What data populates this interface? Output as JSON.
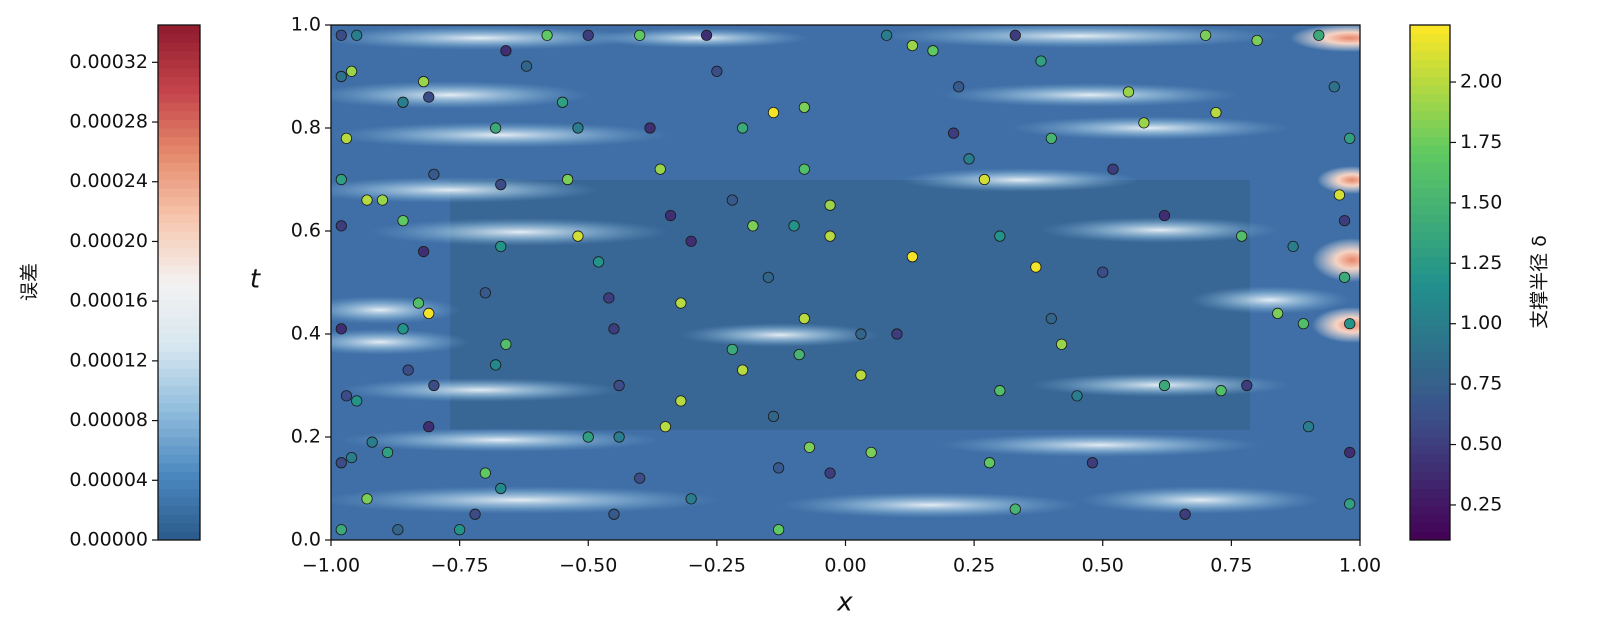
{
  "chart_data": {
    "type": "scatter",
    "xlabel": "x",
    "ylabel": "t",
    "xlim": [
      -1,
      1
    ],
    "xticks": [
      {
        "value": -1,
        "label": "−1.00"
      },
      {
        "value": -0.75,
        "label": "−0.75"
      },
      {
        "value": -0.5,
        "label": "−0.50"
      },
      {
        "value": -0.25,
        "label": "−0.25"
      },
      {
        "value": 0,
        "label": "0.00"
      },
      {
        "value": 0.25,
        "label": "0.25"
      },
      {
        "value": 0.5,
        "label": "0.50"
      },
      {
        "value": 0.75,
        "label": "0.75"
      },
      {
        "value": 1,
        "label": "1.00"
      }
    ],
    "ylim": [
      0,
      1
    ],
    "yticks": [
      {
        "value": 0,
        "label": "0.0"
      },
      {
        "value": 0.2,
        "label": "0.2"
      },
      {
        "value": 0.4,
        "label": "0.4"
      },
      {
        "value": 0.6,
        "label": "0.6"
      },
      {
        "value": 0.8,
        "label": "0.8"
      },
      {
        "value": 1,
        "label": "1.0"
      }
    ],
    "x": [
      -0.98,
      -0.95,
      -0.98,
      -0.96,
      -0.97,
      -0.98,
      -0.98,
      -0.93,
      -0.9,
      -0.86,
      -0.86,
      -0.82,
      -0.81,
      -0.8,
      -0.82,
      -0.83,
      -0.81,
      -0.86,
      -0.85,
      -0.8,
      -0.81,
      -0.98,
      -0.97,
      -0.95,
      -0.98,
      -0.96,
      -0.92,
      -0.89,
      -0.93,
      -0.98,
      -0.87,
      -0.75,
      -0.7,
      -0.67,
      -0.72,
      -0.68,
      -0.66,
      -0.7,
      -0.67,
      -0.67,
      -0.68,
      -0.66,
      -0.62,
      -0.58,
      -0.5,
      -0.55,
      -0.52,
      -0.54,
      -0.52,
      -0.48,
      -0.46,
      -0.45,
      -0.44,
      -0.5,
      -0.44,
      -0.4,
      -0.45,
      -0.4,
      -0.38,
      -0.36,
      -0.34,
      -0.3,
      -0.32,
      -0.32,
      -0.3,
      -0.35,
      -0.27,
      -0.25,
      -0.2,
      -0.22,
      -0.18,
      -0.15,
      -0.22,
      -0.2,
      -0.14,
      -0.13,
      -0.13,
      -0.14,
      -0.08,
      -0.08,
      -0.1,
      -0.08,
      -0.09,
      -0.07,
      -0.03,
      -0.03,
      -0.03,
      0.03,
      0.03,
      0.05,
      0.08,
      0.1,
      0.13,
      0.13,
      0.17,
      0.22,
      0.21,
      0.24,
      0.27,
      0.3,
      0.3,
      0.28,
      0.33,
      0.33,
      0.38,
      0.4,
      0.37,
      0.4,
      0.42,
      0.45,
      0.48,
      0.5,
      0.52,
      0.55,
      0.58,
      0.62,
      0.62,
      0.66,
      0.7,
      0.72,
      0.73,
      0.77,
      0.78,
      0.8,
      0.84,
      0.87,
      0.89,
      0.9,
      0.92,
      0.95,
      0.96,
      0.97,
      0.98,
      0.98,
      0.98,
      0.98,
      0.97
    ],
    "values": [
      0.98,
      0.98,
      0.9,
      0.91,
      0.78,
      0.7,
      0.61,
      0.66,
      0.66,
      0.62,
      0.85,
      0.89,
      0.86,
      0.71,
      0.56,
      0.46,
      0.44,
      0.41,
      0.33,
      0.3,
      0.22,
      0.41,
      0.28,
      0.27,
      0.15,
      0.16,
      0.19,
      0.17,
      0.08,
      0.02,
      0.02,
      0.02,
      0.13,
      0.1,
      0.05,
      0.34,
      0.38,
      0.48,
      0.57,
      0.69,
      0.8,
      0.95,
      0.92,
      0.98,
      0.98,
      0.85,
      0.8,
      0.7,
      0.59,
      0.54,
      0.47,
      0.41,
      0.3,
      0.2,
      0.2,
      0.12,
      0.05,
      0.98,
      0.8,
      0.72,
      0.63,
      0.58,
      0.46,
      0.27,
      0.08,
      0.22,
      0.98,
      0.91,
      0.8,
      0.66,
      0.61,
      0.51,
      0.37,
      0.33,
      0.24,
      0.14,
      0.02,
      0.83,
      0.84,
      0.72,
      0.61,
      0.43,
      0.36,
      0.18,
      0.13,
      0.65,
      0.59,
      0.32,
      0.4,
      0.17,
      0.98,
      0.4,
      0.55,
      0.96,
      0.95,
      0.88,
      0.79,
      0.74,
      0.7,
      0.59,
      0.29,
      0.15,
      0.06,
      0.98,
      0.93,
      0.78,
      0.53,
      0.43,
      0.38,
      0.28,
      0.15,
      0.52,
      0.72,
      0.87,
      0.81,
      0.63,
      0.3,
      0.05,
      0.98,
      0.83,
      0.29,
      0.59,
      0.3,
      0.97,
      0.44,
      0.57,
      0.42,
      0.22,
      0.98,
      0.88,
      0.67,
      0.51,
      0.42,
      0.17,
      0.07,
      0.78,
      0.62
    ],
    "color_values": [
      0.6,
      1.0,
      0.9,
      1.9,
      2.0,
      1.3,
      0.5,
      2.0,
      1.9,
      1.7,
      1.0,
      1.9,
      0.6,
      0.7,
      0.4,
      1.6,
      2.2,
      1.2,
      0.6,
      0.6,
      0.4,
      0.4,
      0.6,
      1.2,
      0.6,
      1.0,
      1.0,
      1.3,
      1.8,
      1.4,
      0.8,
      1.2,
      1.7,
      1.1,
      0.6,
      1.1,
      1.6,
      0.7,
      1.2,
      0.6,
      1.4,
      0.4,
      0.8,
      1.7,
      0.5,
      1.3,
      1.0,
      1.8,
      2.1,
      1.2,
      0.5,
      0.5,
      0.6,
      1.3,
      1.0,
      0.6,
      0.7,
      1.7,
      0.4,
      1.9,
      0.4,
      0.4,
      2.0,
      2.0,
      1.0,
      2.0,
      0.4,
      0.6,
      1.4,
      0.7,
      1.8,
      0.8,
      1.4,
      2.0,
      0.8,
      0.7,
      1.7,
      2.2,
      1.8,
      1.6,
      1.2,
      2.0,
      1.5,
      1.8,
      0.5,
      1.9,
      2.0,
      2.0,
      0.8,
      1.8,
      1.0,
      0.5,
      2.2,
      1.9,
      1.7,
      0.7,
      0.5,
      1.0,
      2.1,
      1.2,
      1.6,
      1.7,
      1.5,
      0.5,
      1.3,
      1.5,
      2.2,
      0.8,
      1.9,
      1.0,
      0.5,
      0.6,
      0.5,
      1.9,
      1.9,
      0.4,
      1.4,
      0.5,
      1.8,
      2.0,
      1.6,
      1.6,
      0.5,
      1.8,
      1.8,
      1.0,
      1.6,
      1.0,
      1.4,
      0.9,
      2.1,
      1.4,
      1.2,
      0.4,
      1.3,
      1.3,
      0.5
    ],
    "colorbar": {
      "label": "支撑半径 δ",
      "colormap": "viridis",
      "lim": [
        0.105,
        2.236
      ],
      "ticks": [
        0.25,
        {
          "value": 0.5,
          "label": "0.50"
        },
        0.75,
        {
          "value": 1,
          "label": "1.00"
        },
        1.25,
        {
          "value": 1.5,
          "label": "1.50"
        },
        1.75,
        {
          "value": 2,
          "label": "2.00"
        }
      ]
    },
    "error_colorbar": {
      "label": "误差",
      "colormap": "RdBu_r",
      "lim": [
        0,
        0.000345
      ],
      "ticks": [
        {
          "value": 0,
          "label": "0.00000"
        },
        {
          "value": 4e-05,
          "label": "0.00004"
        },
        {
          "value": 8e-05,
          "label": "0.00008"
        },
        {
          "value": 0.00012,
          "label": "0.00012"
        },
        {
          "value": 0.00016,
          "label": "0.00016"
        },
        {
          "value": 0.0002,
          "label": "0.00020"
        },
        {
          "value": 0.00024,
          "label": "0.00024"
        },
        {
          "value": 0.00028,
          "label": "0.00028"
        },
        {
          "value": 0.00032,
          "label": "0.00032"
        }
      ]
    }
  }
}
